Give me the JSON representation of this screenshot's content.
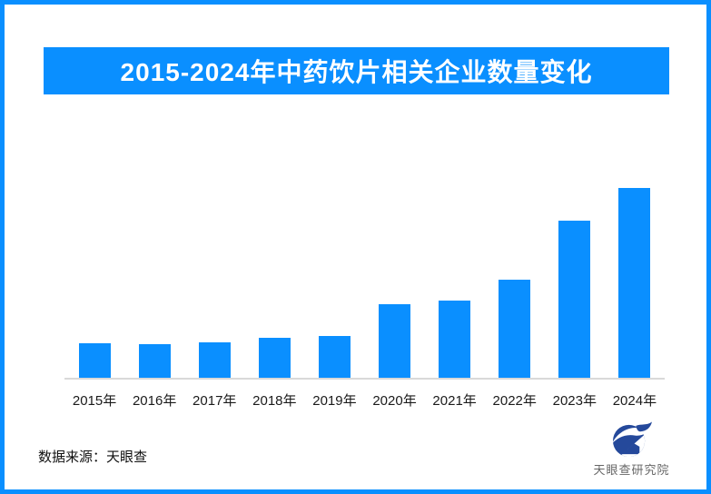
{
  "page": {
    "border_color": "#0a8fff",
    "background_color": "#ffffff"
  },
  "header": {
    "title": "2015-2024年中药饮片相关企业数量变化",
    "banner_color": "#0a8fff",
    "title_color": "#ffffff"
  },
  "chart_data": {
    "type": "bar",
    "title": "2015-2024年中药饮片相关企业数量变化",
    "categories": [
      "2015年",
      "2016年",
      "2017年",
      "2018年",
      "2019年",
      "2020年",
      "2021年",
      "2022年",
      "2023年",
      "2024年"
    ],
    "values": [
      18.2,
      17.8,
      18.8,
      20.9,
      22.1,
      38.8,
      40.8,
      51.6,
      82.7,
      100
    ],
    "value_scale": "relative index, 2024 = 100 (chart shows no y-axis or data labels)",
    "xlabel": "",
    "ylabel": "",
    "ylim": [
      0,
      105
    ],
    "grid": false,
    "legend": false,
    "bar_color": "#0a8fff",
    "axis_line_color": "#d9d9d9",
    "tick_label_color": "#1a1a1a"
  },
  "footer": {
    "source_label": "数据来源：天眼查",
    "logo_text": "天眼查研究院",
    "logo_icon": "tianyancha-eye-swoosh-house",
    "logo_color": "#25499b",
    "logo_text_color": "#666666"
  }
}
